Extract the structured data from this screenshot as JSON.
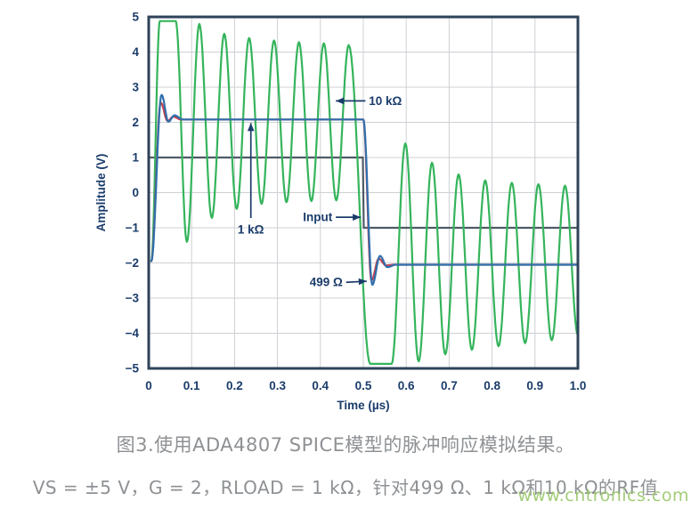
{
  "figure": {
    "caption": "图3.使用ADA4807 SPICE模型的脉冲响应模拟结果。",
    "subcaption": "VS = ±5 V，G = 2，RLOAD = 1 kΩ，针对499 Ω、1 kΩ和10 kΩ的RF值",
    "watermark": "www.cntronics.com"
  },
  "chart_data": {
    "type": "line",
    "title": "",
    "xlabel": "Time (µs)",
    "ylabel": "Amplitude (V)",
    "xlim": [
      0,
      1.0
    ],
    "ylim": [
      -5,
      5
    ],
    "grid": true,
    "xticks": [
      0,
      0.1,
      0.2,
      0.3,
      0.4,
      0.5,
      0.6,
      0.7,
      0.8,
      0.9,
      1.0
    ],
    "xtick_labels": [
      "0",
      "0.1",
      "0.2",
      "0.3",
      "0.4",
      "0.5",
      "0.6",
      "0.7",
      "0.8",
      "0.9",
      "1.0"
    ],
    "yticks": [
      5,
      4,
      3,
      2,
      1,
      0,
      -1,
      -2,
      -3,
      -4,
      -5
    ],
    "ytick_labels": [
      "5",
      "4",
      "3",
      "2",
      "1",
      "0",
      "−1",
      "−2",
      "−3",
      "−4",
      "−5"
    ],
    "colors": {
      "border": "#2e4258",
      "grid": "#cdd0d4",
      "text": "#1b3c6b",
      "input": "#4e5b66",
      "rf_10k": "#35b45c",
      "rf_1k": "#2f6fad",
      "rf_499": "#c2404d"
    },
    "series": [
      {
        "name": "Input",
        "color": "#4e5b66",
        "width": 2.2,
        "interp": "linear",
        "points": [
          [
            0.002,
            1.0
          ],
          [
            0.499,
            1.0
          ],
          [
            0.501,
            -1.0
          ],
          [
            0.999,
            -1.0
          ]
        ]
      },
      {
        "name": "10 kΩ",
        "color": "#35b45c",
        "width": 2.2,
        "interp": "cosine",
        "points": [
          [
            0.006,
            -1.95
          ],
          [
            0.026,
            4.88
          ],
          [
            0.063,
            4.88
          ],
          [
            0.089,
            -1.4
          ],
          [
            0.118,
            4.8
          ],
          [
            0.147,
            -0.72
          ],
          [
            0.176,
            4.52
          ],
          [
            0.205,
            -0.46
          ],
          [
            0.234,
            4.4
          ],
          [
            0.263,
            -0.32
          ],
          [
            0.292,
            4.33
          ],
          [
            0.321,
            -0.27
          ],
          [
            0.35,
            4.28
          ],
          [
            0.379,
            -0.24
          ],
          [
            0.408,
            4.25
          ],
          [
            0.437,
            -0.22
          ],
          [
            0.466,
            4.2
          ],
          [
            0.516,
            -4.87
          ],
          [
            0.566,
            -4.87
          ],
          [
            0.598,
            1.4
          ],
          [
            0.629,
            -4.8
          ],
          [
            0.66,
            0.85
          ],
          [
            0.691,
            -4.6
          ],
          [
            0.722,
            0.52
          ],
          [
            0.753,
            -4.47
          ],
          [
            0.784,
            0.35
          ],
          [
            0.815,
            -4.37
          ],
          [
            0.846,
            0.28
          ],
          [
            0.877,
            -4.28
          ],
          [
            0.908,
            0.24
          ],
          [
            0.939,
            -4.2
          ],
          [
            0.97,
            0.2
          ],
          [
            1.0,
            -4.05
          ]
        ]
      },
      {
        "name": "499 Ω",
        "color": "#c2404d",
        "width": 2.2,
        "interp": "cosine",
        "points": [
          [
            0.006,
            -1.95
          ],
          [
            0.028,
            2.56
          ],
          [
            0.044,
            2.04
          ],
          [
            0.057,
            2.16
          ],
          [
            0.076,
            2.08
          ],
          [
            0.5,
            2.08
          ],
          [
            0.519,
            -2.5
          ],
          [
            0.536,
            -1.88
          ],
          [
            0.553,
            -2.07
          ],
          [
            0.572,
            -2.05
          ],
          [
            1.0,
            -2.05
          ]
        ]
      },
      {
        "name": "1 kΩ",
        "color": "#2f6fad",
        "width": 2.2,
        "interp": "cosine",
        "points": [
          [
            0.006,
            -1.95
          ],
          [
            0.03,
            2.78
          ],
          [
            0.046,
            2.02
          ],
          [
            0.06,
            2.2
          ],
          [
            0.08,
            2.08
          ],
          [
            0.5,
            2.08
          ],
          [
            0.521,
            -2.62
          ],
          [
            0.539,
            -1.8
          ],
          [
            0.556,
            -2.12
          ],
          [
            0.576,
            -2.05
          ],
          [
            1.0,
            -2.05
          ]
        ]
      }
    ],
    "annotations": [
      {
        "label": "10 kΩ",
        "text_pos": [
          0.513,
          2.61
        ],
        "anchor": "start",
        "arrow": [
          [
            0.505,
            2.61
          ],
          [
            0.436,
            2.61
          ]
        ]
      },
      {
        "label": "1 kΩ",
        "text_pos": [
          0.238,
          -1.05
        ],
        "anchor": "middle",
        "arrow": [
          [
            0.238,
            -0.72
          ],
          [
            0.238,
            1.98
          ]
        ]
      },
      {
        "label": "Input",
        "text_pos": [
          0.428,
          -0.7
        ],
        "anchor": "end",
        "arrow": [
          [
            0.436,
            -0.7
          ],
          [
            0.494,
            -0.7
          ]
        ]
      },
      {
        "label": "499 Ω",
        "text_pos": [
          0.452,
          -2.55
        ],
        "anchor": "end",
        "arrow": [
          [
            0.46,
            -2.55
          ],
          [
            0.508,
            -2.52
          ]
        ]
      }
    ],
    "legend": null
  }
}
